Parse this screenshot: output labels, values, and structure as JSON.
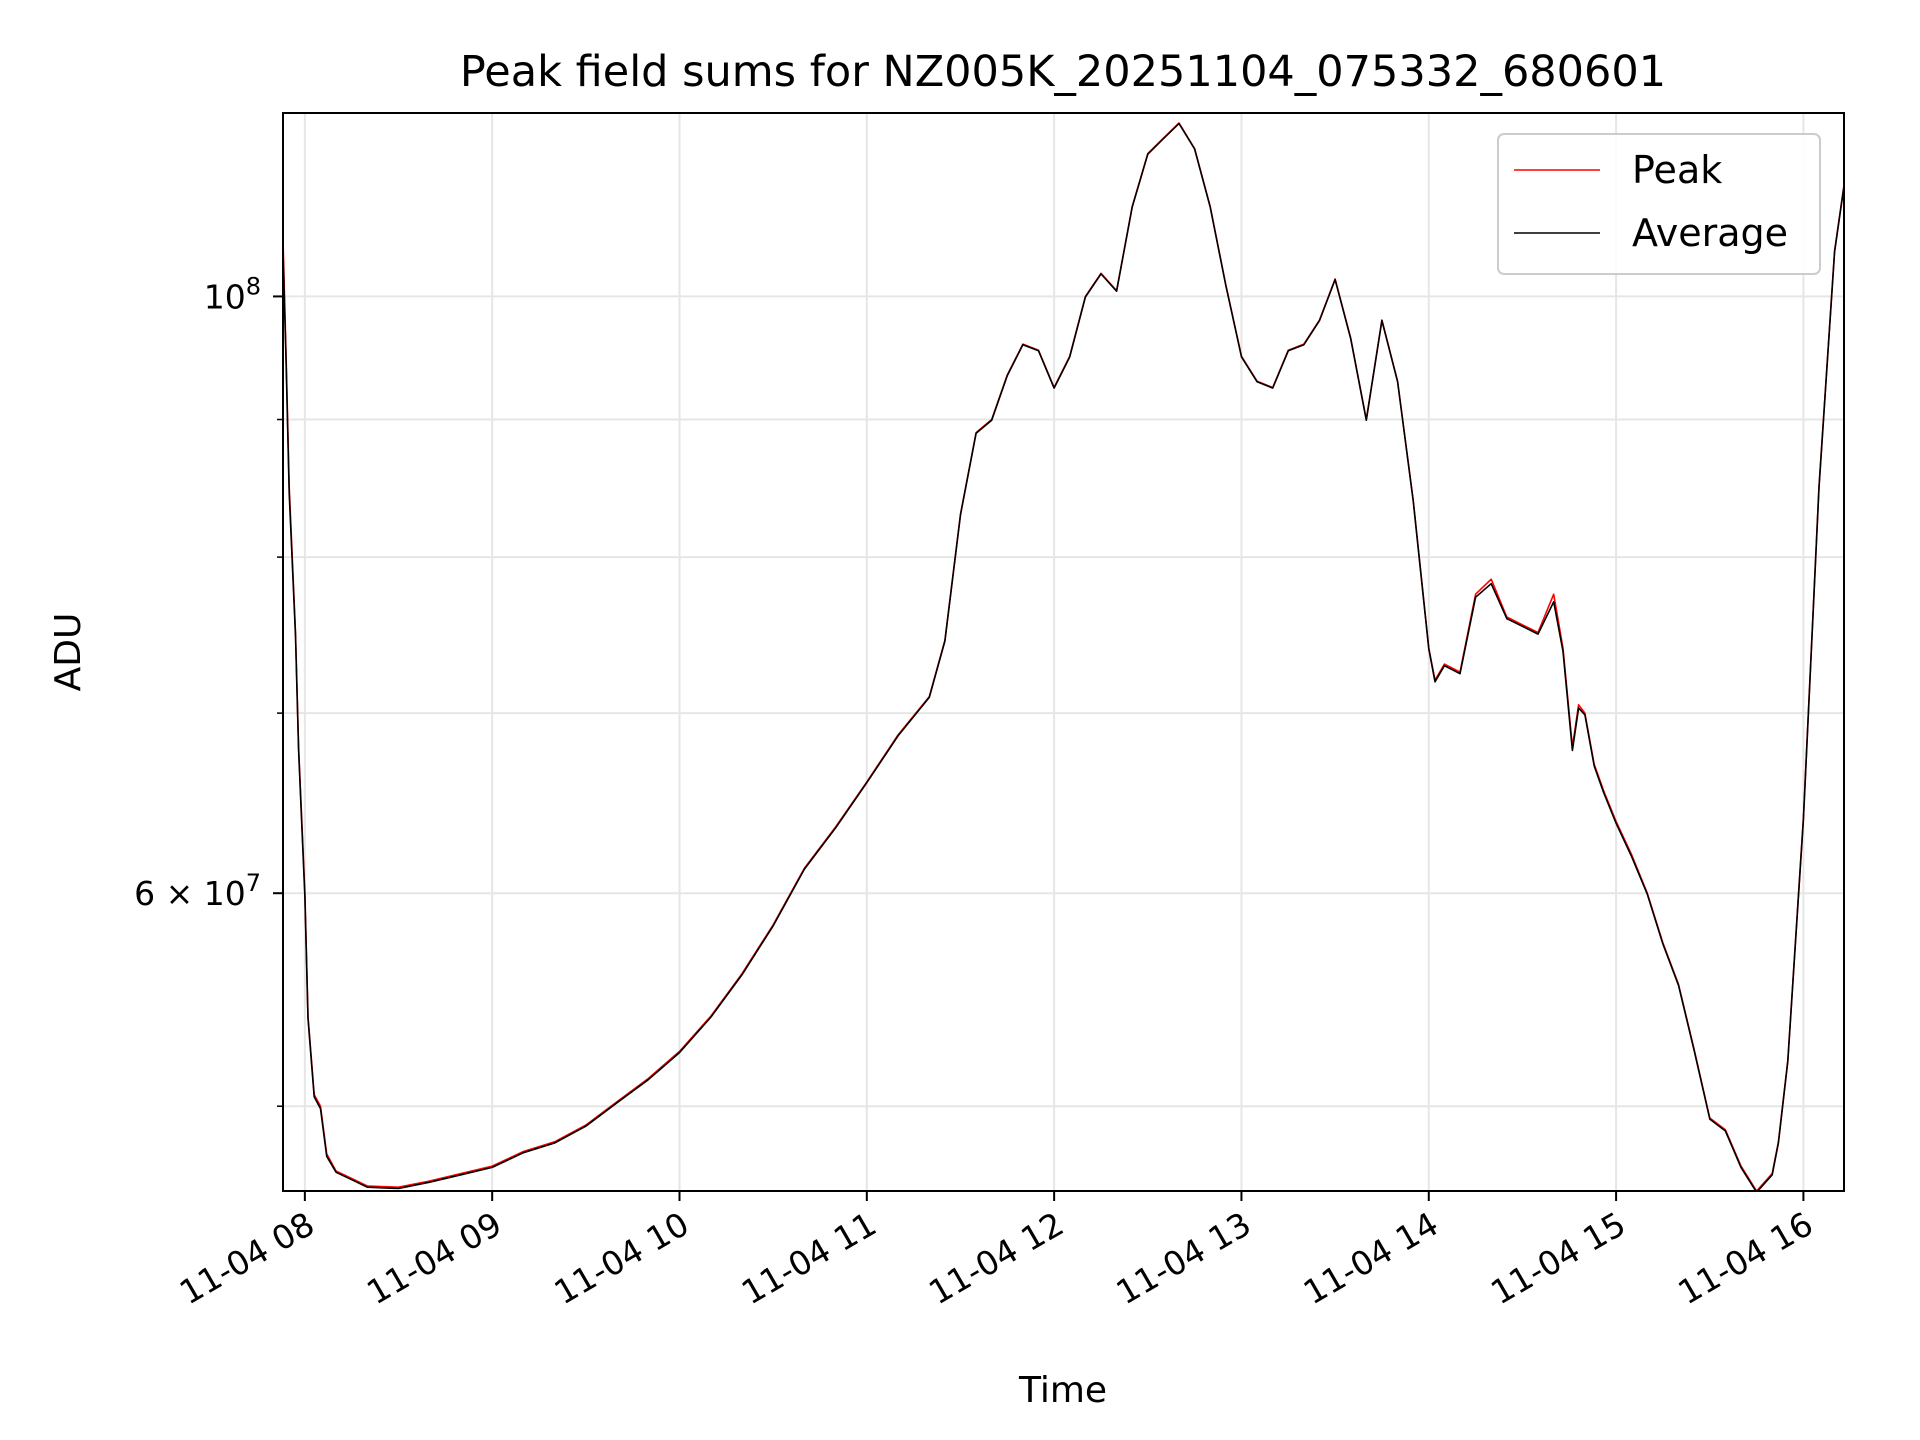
{
  "chart_data": {
    "type": "line",
    "title": "Peak field sums for NZ005K_20251104_075332_680601",
    "xlabel": "Time",
    "ylabel": "ADU",
    "y_scale": "log",
    "x_ticks": [
      "11-04 08",
      "11-04 09",
      "11-04 10",
      "11-04 11",
      "11-04 12",
      "11-04 13",
      "11-04 14",
      "11-04 15",
      "11-04 16"
    ],
    "y_tick_labels": [
      {
        "value": 60000000,
        "label": "6 × 10^7",
        "mantissa": "6",
        "exponent": "7"
      },
      {
        "value": 100000000,
        "label": "10^8",
        "mantissa": "",
        "exponent": "8"
      }
    ],
    "y_minor_ticks": [
      50000000,
      70000000,
      80000000,
      90000000
    ],
    "xlim": [
      "11-04 07:53",
      "11-04 16:13"
    ],
    "ylim": [
      46500000,
      117000000
    ],
    "grid": true,
    "legend": {
      "position": "top-right",
      "entries": [
        "Peak",
        "Average"
      ]
    },
    "colors": {
      "Peak": "#ff0000",
      "Average": "#000000"
    },
    "series": [
      {
        "name": "Peak",
        "x": [
          "07:53",
          "07:54",
          "07:55",
          "07:57",
          "07:58",
          "08:00",
          "08:01",
          "08:03",
          "08:05",
          "08:07",
          "08:10",
          "08:15",
          "08:20",
          "08:30",
          "08:40",
          "08:50",
          "09:00",
          "09:10",
          "09:20",
          "09:30",
          "09:40",
          "09:50",
          "10:00",
          "10:10",
          "10:20",
          "10:30",
          "10:40",
          "10:50",
          "11:00",
          "11:10",
          "11:20",
          "11:25",
          "11:30",
          "11:35",
          "11:40",
          "11:45",
          "11:50",
          "11:55",
          "12:00",
          "12:05",
          "12:10",
          "12:15",
          "12:20",
          "12:25",
          "12:30",
          "12:35",
          "12:40",
          "12:45",
          "12:50",
          "12:55",
          "13:00",
          "13:05",
          "13:10",
          "13:15",
          "13:20",
          "13:25",
          "13:30",
          "13:35",
          "13:40",
          "13:45",
          "13:50",
          "13:55",
          "14:00",
          "14:02",
          "14:05",
          "14:10",
          "14:15",
          "14:20",
          "14:25",
          "14:30",
          "14:35",
          "14:40",
          "14:43",
          "14:46",
          "14:48",
          "14:50",
          "14:53",
          "14:56",
          "15:00",
          "15:05",
          "15:10",
          "15:15",
          "15:20",
          "15:25",
          "15:30",
          "15:35",
          "15:40",
          "15:45",
          "15:50",
          "15:52",
          "15:55",
          "16:00",
          "16:05",
          "16:10",
          "16:13"
        ],
        "values": [
          105000000,
          95000000,
          85000000,
          75000000,
          68000000,
          60000000,
          54000000,
          50500000,
          50000000,
          48000000,
          47300000,
          47000000,
          46700000,
          46650000,
          46900000,
          47200000,
          47500000,
          48100000,
          48500000,
          49200000,
          50200000,
          51200000,
          52400000,
          54000000,
          56000000,
          58400000,
          61300000,
          63500000,
          66000000,
          68700000,
          71000000,
          74500000,
          83000000,
          89000000,
          90000000,
          93500000,
          96000000,
          95500000,
          92500000,
          95000000,
          100000000,
          102000000,
          100500000,
          108000000,
          113000000,
          114500000,
          116000000,
          113500000,
          108000000,
          101000000,
          95000000,
          93000000,
          92500000,
          95500000,
          96000000,
          98000000,
          101500000,
          96500000,
          90000000,
          98000000,
          93000000,
          84000000,
          74000000,
          72000000,
          73000000,
          72500000,
          77500000,
          78500000,
          76000000,
          75500000,
          75000000,
          77500000,
          74000000,
          68000000,
          70500000,
          70000000,
          67000000,
          65500000,
          63800000,
          62000000,
          60000000,
          57500000,
          55500000,
          52500000,
          49500000,
          49000000,
          47500000,
          46500000,
          47200000,
          48500000,
          52000000,
          64000000,
          85000000,
          104000000,
          110000000
        ]
      },
      {
        "name": "Average",
        "x": [
          "07:53",
          "07:54",
          "07:55",
          "07:57",
          "07:58",
          "08:00",
          "08:01",
          "08:03",
          "08:05",
          "08:07",
          "08:10",
          "08:15",
          "08:20",
          "08:30",
          "08:40",
          "08:50",
          "09:00",
          "09:10",
          "09:20",
          "09:30",
          "09:40",
          "09:50",
          "10:00",
          "10:10",
          "10:20",
          "10:30",
          "10:40",
          "10:50",
          "11:00",
          "11:10",
          "11:20",
          "11:25",
          "11:30",
          "11:35",
          "11:40",
          "11:45",
          "11:50",
          "11:55",
          "12:00",
          "12:05",
          "12:10",
          "12:15",
          "12:20",
          "12:25",
          "12:30",
          "12:35",
          "12:40",
          "12:45",
          "12:50",
          "12:55",
          "13:00",
          "13:05",
          "13:10",
          "13:15",
          "13:20",
          "13:25",
          "13:30",
          "13:35",
          "13:40",
          "13:45",
          "13:50",
          "13:55",
          "14:00",
          "14:02",
          "14:05",
          "14:10",
          "14:15",
          "14:20",
          "14:25",
          "14:30",
          "14:35",
          "14:40",
          "14:43",
          "14:46",
          "14:48",
          "14:50",
          "14:53",
          "14:56",
          "15:00",
          "15:05",
          "15:10",
          "15:15",
          "15:20",
          "15:25",
          "15:30",
          "15:35",
          "15:40",
          "15:45",
          "15:50",
          "15:52",
          "15:55",
          "16:00",
          "16:05",
          "16:10",
          "16:13"
        ],
        "values": [
          104000000,
          94500000,
          84500000,
          74800000,
          67800000,
          59800000,
          53900000,
          50400000,
          49900000,
          47900000,
          47250000,
          46950000,
          46650000,
          46600000,
          46850000,
          47150000,
          47450000,
          48050000,
          48450000,
          49150000,
          50150000,
          51150000,
          52350000,
          53950000,
          55950000,
          58350000,
          61250000,
          63450000,
          65950000,
          68650000,
          70950000,
          74450000,
          82950000,
          88950000,
          89950000,
          93450000,
          95950000,
          95450000,
          92450000,
          94950000,
          99950000,
          101950000,
          100450000,
          107950000,
          112950000,
          114450000,
          115950000,
          113450000,
          107950000,
          100950000,
          94950000,
          92950000,
          92450000,
          95450000,
          95950000,
          97950000,
          101450000,
          96450000,
          89950000,
          97950000,
          92950000,
          83950000,
          73950000,
          71900000,
          72900000,
          72400000,
          77300000,
          78200000,
          75900000,
          75400000,
          74900000,
          77000000,
          73800000,
          67800000,
          70300000,
          69900000,
          66900000,
          65400000,
          63700000,
          61900000,
          59950000,
          57450000,
          55450000,
          52450000,
          49450000,
          48950000,
          47450000,
          46450000,
          47150000,
          48450000,
          51950000,
          63900000,
          84900000,
          103900000,
          109900000
        ]
      }
    ]
  }
}
